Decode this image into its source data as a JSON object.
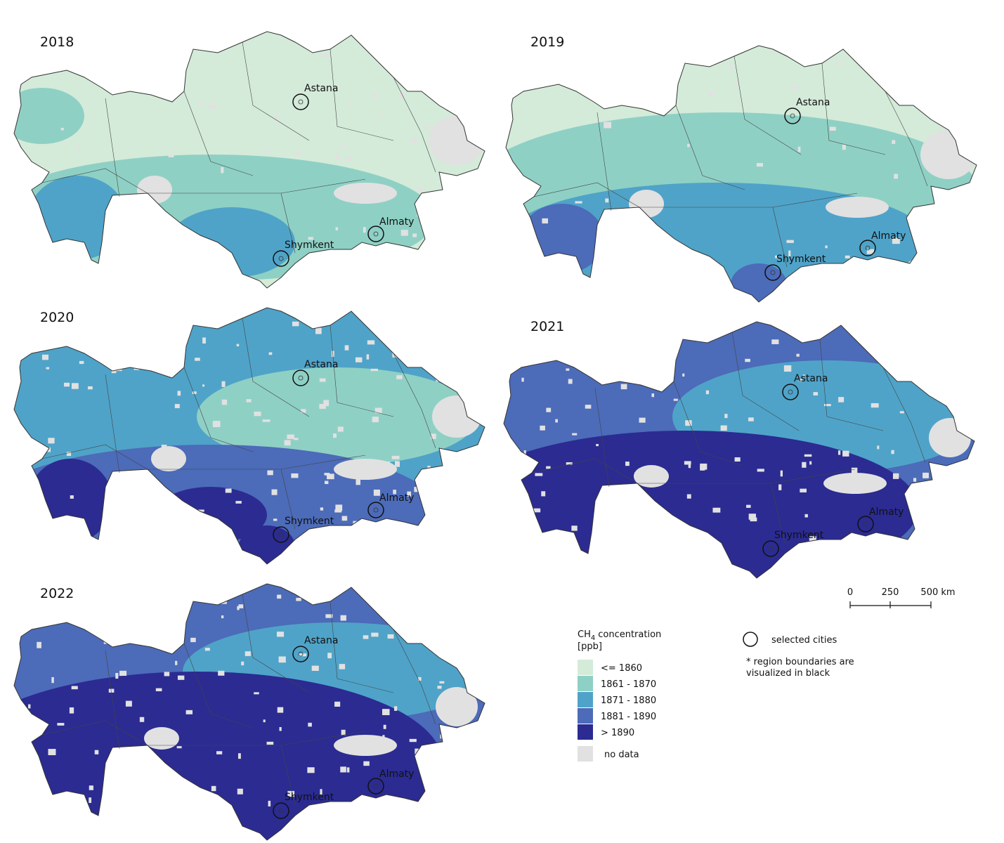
{
  "panels": [
    {
      "year": "2018",
      "cities": [
        "Astana",
        "Almaty",
        "Shymkent"
      ]
    },
    {
      "year": "2019",
      "cities": [
        "Astana",
        "Almaty",
        "Shymkent"
      ]
    },
    {
      "year": "2020",
      "cities": [
        "Astana",
        "Almaty",
        "Shymkent"
      ]
    },
    {
      "year": "2021",
      "cities": [
        "Astana",
        "Almaty",
        "Shymkent"
      ]
    },
    {
      "year": "2022",
      "cities": [
        "Astana",
        "Almaty",
        "Shymkent"
      ]
    }
  ],
  "legend": {
    "title": "CH",
    "title_sub": "4",
    "title_rest": "concentration",
    "unit": "[ppb]",
    "items": [
      {
        "label": "<= 1860",
        "color": "#d4ebd9"
      },
      {
        "label": "1861 - 1870",
        "color": "#8fd0c5"
      },
      {
        "label": "1871 - 1880",
        "color": "#4fa3c8"
      },
      {
        "label": "1881 - 1890",
        "color": "#4c6bb9"
      },
      {
        "label": "> 1890",
        "color": "#2b2b92"
      },
      {
        "label": "no data",
        "color": "#e1e1e1"
      }
    ]
  },
  "symbol_legend": {
    "label": "selected cities"
  },
  "note": [
    "* region boundaries are",
    "visualized in black"
  ],
  "scale_bar": {
    "ticks": [
      "0",
      "250",
      "500 km"
    ]
  }
}
